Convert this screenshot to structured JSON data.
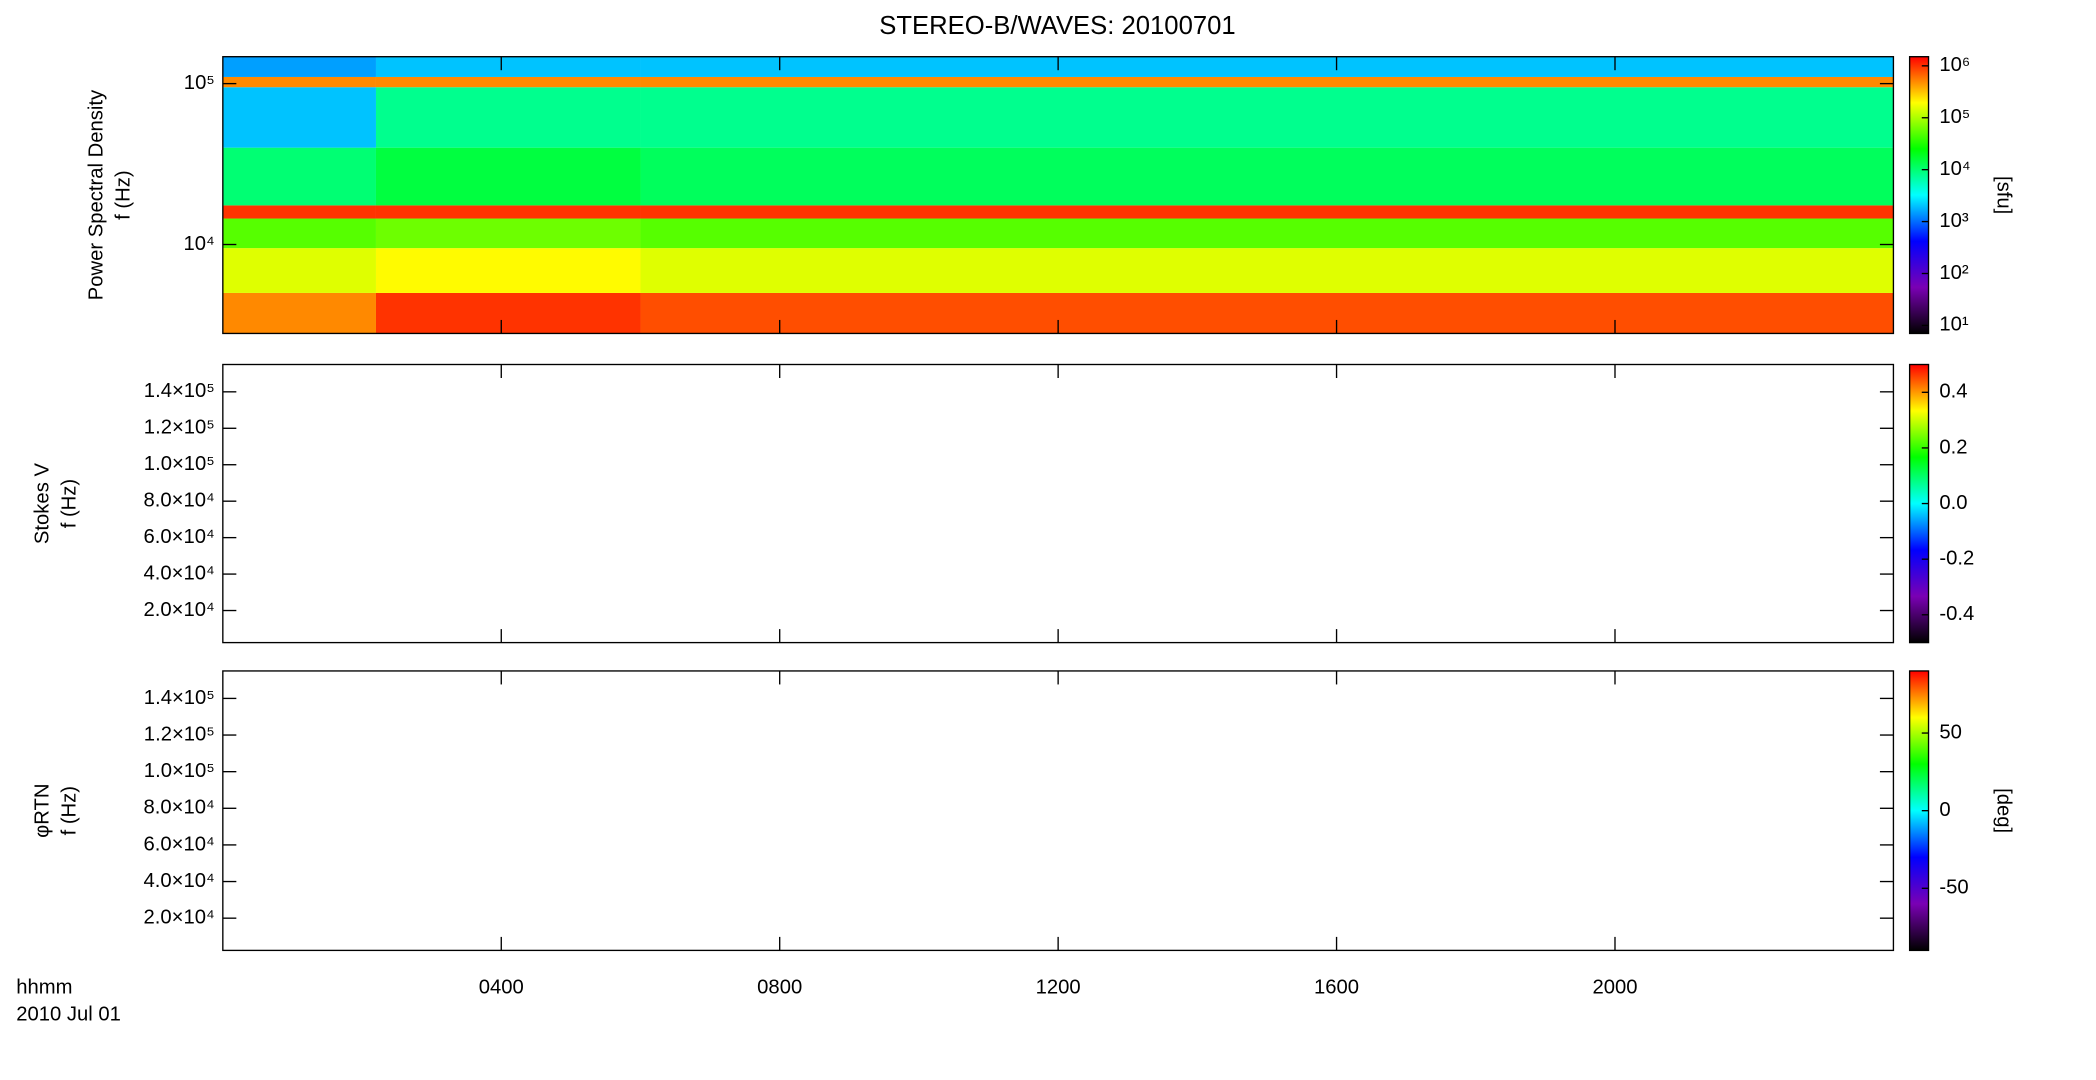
{
  "title": "STEREO-B/WAVES: 20100701",
  "time_label": "hhmm",
  "date_label": "2010 Jul 01",
  "colormap": [
    "#000000",
    "#7a00b4",
    "#0000ff",
    "#00ffff",
    "#00ff00",
    "#ffff00",
    "#ff0000"
  ],
  "time_axis": {
    "xlim": [
      0,
      24
    ],
    "xticks": [
      {
        "value": 4,
        "label": "0400"
      },
      {
        "value": 8,
        "label": "0800"
      },
      {
        "value": 12,
        "label": "1200"
      },
      {
        "value": 16,
        "label": "1600"
      },
      {
        "value": 20,
        "label": "2000"
      }
    ]
  },
  "chart_data": [
    {
      "type": "heatmap",
      "ylabel": [
        "Power Spectral Density",
        "f (Hz)"
      ],
      "ylog": true,
      "ylim": [
        2800,
        147000
      ],
      "yticks": [
        {
          "value": 10000,
          "label": "10⁴"
        },
        {
          "value": 100000,
          "label": "10⁵"
        }
      ],
      "x_edges": [
        0,
        2.2,
        6,
        24
      ],
      "y_edges": [
        2800,
        5000,
        9500,
        14500,
        17500,
        40000,
        95000,
        110000,
        147000
      ],
      "values": [
        [
          500000,
          1000000,
          800000
        ],
        [
          150000,
          200000,
          150000
        ],
        [
          50000,
          60000,
          50000
        ],
        [
          1000000,
          1000000,
          1000000
        ],
        [
          10000,
          15000,
          12000
        ],
        [
          2000,
          8000,
          8000
        ],
        [
          500000,
          500000,
          500000
        ],
        [
          1500,
          2000,
          2000
        ]
      ],
      "colorbar": {
        "label": "[sfu]",
        "log": true,
        "lim": [
          7,
          1500000
        ],
        "ticks": [
          {
            "value": 10,
            "label": "10¹"
          },
          {
            "value": 100,
            "label": "10²"
          },
          {
            "value": 1000,
            "label": "10³"
          },
          {
            "value": 10000,
            "label": "10⁴"
          },
          {
            "value": 100000,
            "label": "10⁵"
          },
          {
            "value": 1000000,
            "label": "10⁶"
          }
        ]
      }
    },
    {
      "type": "heatmap",
      "ylabel": [
        "Stokes V",
        "f (Hz)"
      ],
      "ylog": false,
      "ylim": [
        2400,
        155000
      ],
      "yticks": [
        {
          "value": 20000,
          "label": "2.0×10⁴"
        },
        {
          "value": 40000,
          "label": "4.0×10⁴"
        },
        {
          "value": 60000,
          "label": "6.0×10⁴"
        },
        {
          "value": 80000,
          "label": "8.0×10⁴"
        },
        {
          "value": 100000,
          "label": "1.0×10⁵"
        },
        {
          "value": 120000,
          "label": "1.2×10⁵"
        },
        {
          "value": 140000,
          "label": "1.4×10⁵"
        }
      ],
      "colorbar": {
        "log": false,
        "lim": [
          -0.5,
          0.5
        ],
        "ticks": [
          -0.4,
          -0.2,
          {
            "value": 0,
            "label": "0.0"
          },
          0.2,
          0.4
        ]
      }
    },
    {
      "type": "heatmap",
      "ylabel": [
        "φRTN",
        "f (Hz)"
      ],
      "ylog": false,
      "ylim": [
        2400,
        155000
      ],
      "yticks": [
        {
          "value": 20000,
          "label": "2.0×10⁴"
        },
        {
          "value": 40000,
          "label": "4.0×10⁴"
        },
        {
          "value": 60000,
          "label": "6.0×10⁴"
        },
        {
          "value": 80000,
          "label": "8.0×10⁴"
        },
        {
          "value": 100000,
          "label": "1.0×10⁵"
        },
        {
          "value": 120000,
          "label": "1.2×10⁵"
        },
        {
          "value": 140000,
          "label": "1.4×10⁵"
        }
      ],
      "colorbar": {
        "label": "[deg]",
        "log": false,
        "lim": [
          -90,
          90
        ],
        "ticks": [
          -50,
          0,
          50
        ]
      }
    }
  ]
}
